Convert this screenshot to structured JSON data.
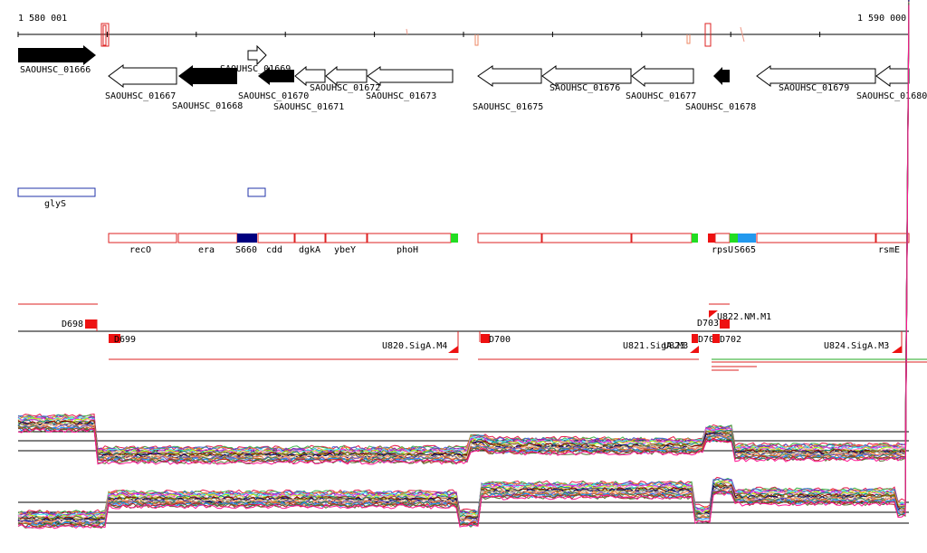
{
  "ruler": {
    "start_label": "1 580 001",
    "end_label": "1 590 000"
  },
  "colors": {
    "forward_gene_fill": "#000000",
    "reverse_gene_fill": "#ffffff",
    "feature_border": "#dd2222",
    "sig_green": "#22dd22",
    "sig_navy": "#000080",
    "sig_blue": "#2299ee",
    "gene_name_border": "#2233aa"
  },
  "genes": [
    {
      "label": "SAOUHSC_01666",
      "strand": "+",
      "filled": true
    },
    {
      "label": "SAOUHSC_01667",
      "strand": "-",
      "filled": false
    },
    {
      "label": "SAOUHSC_01668",
      "strand": "-",
      "filled": true
    },
    {
      "label": "SAOUHSC_01669",
      "strand": "+",
      "filled": false
    },
    {
      "label": "SAOUHSC_01670",
      "strand": "-",
      "filled": true
    },
    {
      "label": "SAOUHSC_01671",
      "strand": "-",
      "filled": false
    },
    {
      "label": "SAOUHSC_01672",
      "strand": "-",
      "filled": false
    },
    {
      "label": "SAOUHSC_01673",
      "strand": "-",
      "filled": false
    },
    {
      "label": "SAOUHSC_01675",
      "strand": "-",
      "filled": false
    },
    {
      "label": "SAOUHSC_01676",
      "strand": "-",
      "filled": false
    },
    {
      "label": "SAOUHSC_01677",
      "strand": "-",
      "filled": false
    },
    {
      "label": "SAOUHSC_01678",
      "strand": "-",
      "filled": true
    },
    {
      "label": "SAOUHSC_01679",
      "strand": "-",
      "filled": false
    },
    {
      "label": "SAOUHSC_01680",
      "strand": "-",
      "filled": false
    }
  ],
  "gene_names": [
    "glyS"
  ],
  "operon_genes": [
    "recO",
    "era",
    "S660",
    "cdd",
    "dgkA",
    "ybeY",
    "phoH",
    "rpsU",
    "S665",
    "rsmE"
  ],
  "transcription_units": [
    "D698",
    "D699",
    "U820.SigA.M4",
    "D700",
    "U821.SigA.M3",
    "U823",
    "D701",
    "D702",
    "D703",
    "U822.NM.M1",
    "U824.SigA.M3"
  ],
  "expression_tracks": [
    "upper",
    "lower"
  ]
}
